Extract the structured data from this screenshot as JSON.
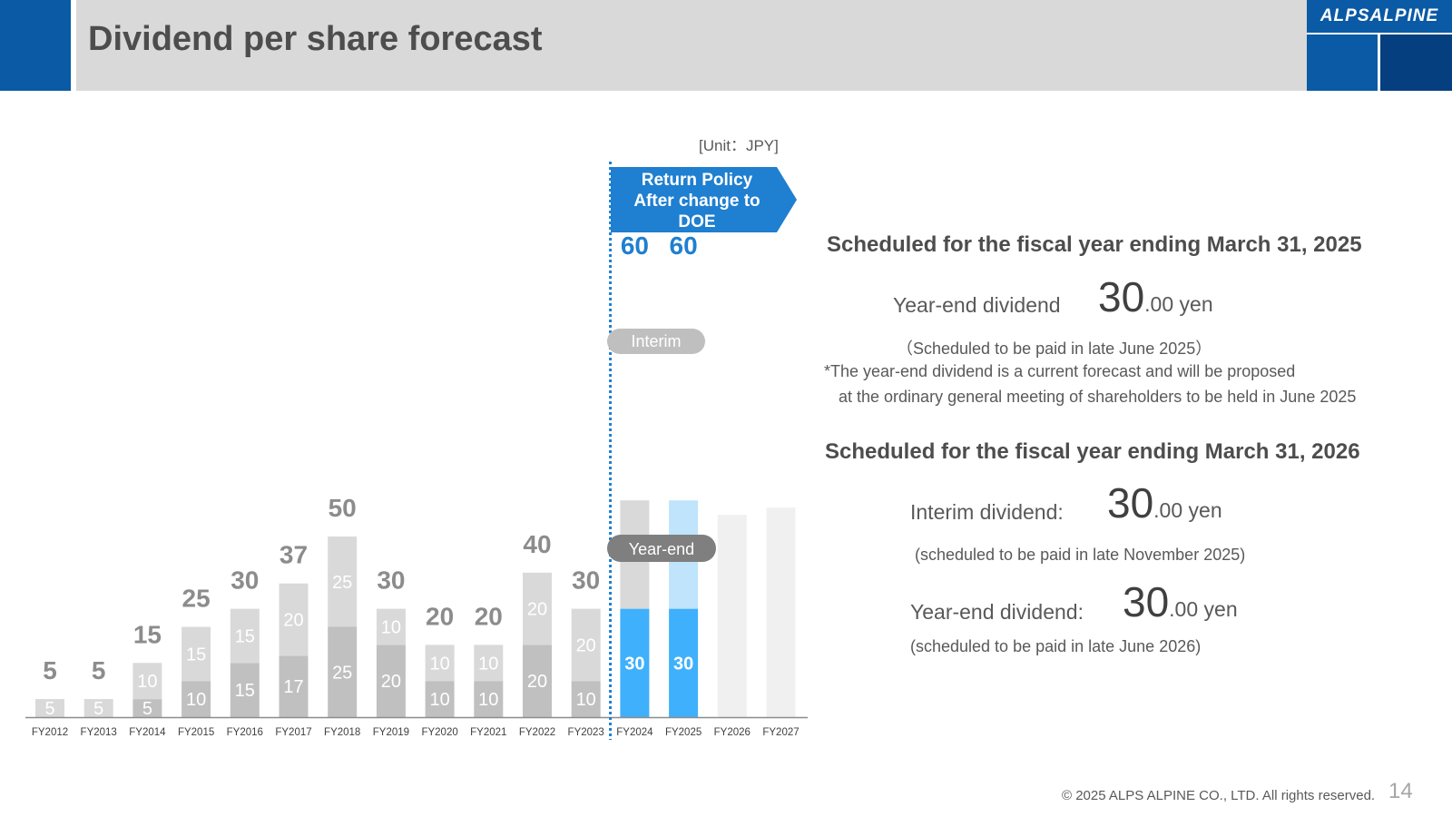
{
  "header": {
    "title": "Dividend per share forecast",
    "logo": "ALPSALPINE"
  },
  "unit": "[Unit：JPY]",
  "policy_banner": [
    "Return Policy",
    "After change to",
    "DOE"
  ],
  "legend": {
    "interim": "Interim",
    "year_end": "Year-end"
  },
  "chart_data": {
    "type": "bar",
    "stacked": true,
    "categories": [
      "FY2012",
      "FY2013",
      "FY2014",
      "FY2015",
      "FY2016",
      "FY2017",
      "FY2018",
      "FY2019",
      "FY2020",
      "FY2021",
      "FY2022",
      "FY2023",
      "FY2024",
      "FY2025",
      "FY2026",
      "FY2027"
    ],
    "series": [
      {
        "name": "Year-end",
        "values": [
          5,
          5,
          5,
          10,
          15,
          17,
          25,
          20,
          10,
          10,
          20,
          10,
          30,
          30,
          null,
          null
        ]
      },
      {
        "name": "Interim",
        "values": [
          null,
          null,
          10,
          15,
          15,
          20,
          25,
          10,
          10,
          10,
          20,
          20,
          30,
          30,
          null,
          null
        ]
      }
    ],
    "totals": [
      5,
      5,
      15,
      25,
      30,
      37,
      50,
      30,
      20,
      20,
      40,
      30,
      60,
      60,
      null,
      null
    ],
    "ylim": [
      0,
      70
    ],
    "grid": false,
    "legend_position": "inside-bars"
  },
  "colors": {
    "highlight": "#1f7fd0",
    "year_end_forecast": "#3fb0fb",
    "interim_forecast": "#bfe4fc"
  },
  "right": {
    "section1": {
      "heading": "Scheduled for the fiscal year ending March 31, 2025",
      "label": "Year-end dividend",
      "big": "30",
      "suffix": ".00 yen",
      "note1": "（Scheduled to be paid in late June 2025）",
      "note2": "*The year-end dividend is a current forecast and will be proposed",
      "note3": "at the ordinary general meeting of shareholders to be held in June 2025"
    },
    "section2": {
      "heading": "Scheduled for the fiscal year ending March 31, 2026",
      "interim_label": "Interim dividend:",
      "interim_big": "30",
      "interim_suffix": ".00 yen",
      "interim_note": "(scheduled to be paid in late November 2025)",
      "yearend_label": "Year-end dividend:",
      "yearend_big": "30",
      "yearend_suffix": ".00 yen",
      "yearend_note": "(scheduled to be paid in late June 2026)"
    }
  },
  "footer": {
    "copyright": "© 2025 ALPS ALPINE CO., LTD. All rights reserved.",
    "page": "14"
  }
}
